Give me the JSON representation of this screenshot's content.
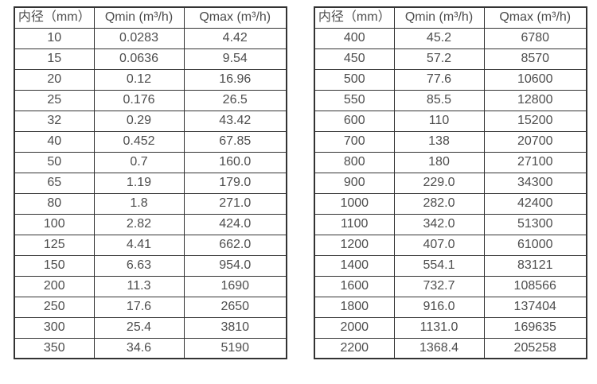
{
  "page": {
    "background": "#ffffff"
  },
  "colors": {
    "border": "#333333",
    "text": "#4d4d4d",
    "background": "#ffffff"
  },
  "chart_data": [
    {
      "type": "table",
      "title": "",
      "columns": [
        "内径（mm）",
        "Qmin (m³/h)",
        "Qmax (m³/h)"
      ],
      "rows": [
        [
          "10",
          "0.0283",
          "4.42"
        ],
        [
          "15",
          "0.0636",
          "9.54"
        ],
        [
          "20",
          "0.12",
          "16.96"
        ],
        [
          "25",
          "0.176",
          "26.5"
        ],
        [
          "32",
          "0.29",
          "43.42"
        ],
        [
          "40",
          "0.452",
          "67.85"
        ],
        [
          "50",
          "0.7",
          "160.0"
        ],
        [
          "65",
          "1.19",
          "179.0"
        ],
        [
          "80",
          "1.8",
          "271.0"
        ],
        [
          "100",
          "2.82",
          "424.0"
        ],
        [
          "125",
          "4.41",
          "662.0"
        ],
        [
          "150",
          "6.63",
          "954.0"
        ],
        [
          "200",
          "11.3",
          "1690"
        ],
        [
          "250",
          "17.6",
          "2650"
        ],
        [
          "300",
          "25.4",
          "3810"
        ],
        [
          "350",
          "34.6",
          "5190"
        ]
      ]
    },
    {
      "type": "table",
      "title": "",
      "columns": [
        "内径（mm）",
        "Qmin (m³/h)",
        "Qmax (m³/h)"
      ],
      "rows": [
        [
          "400",
          "45.2",
          "6780"
        ],
        [
          "450",
          "57.2",
          "8570"
        ],
        [
          "500",
          "77.6",
          "10600"
        ],
        [
          "550",
          "85.5",
          "12800"
        ],
        [
          "600",
          "110",
          "15200"
        ],
        [
          "700",
          "138",
          "20700"
        ],
        [
          "800",
          "180",
          "27100"
        ],
        [
          "900",
          "229.0",
          "34300"
        ],
        [
          "1000",
          "282.0",
          "42400"
        ],
        [
          "1100",
          "342.0",
          "51300"
        ],
        [
          "1200",
          "407.0",
          "61000"
        ],
        [
          "1400",
          "554.1",
          "83121"
        ],
        [
          "1600",
          "732.7",
          "108566"
        ],
        [
          "1800",
          "916.0",
          "137404"
        ],
        [
          "2000",
          "1131.0",
          "169635"
        ],
        [
          "2200",
          "1368.4",
          "205258"
        ]
      ]
    }
  ]
}
